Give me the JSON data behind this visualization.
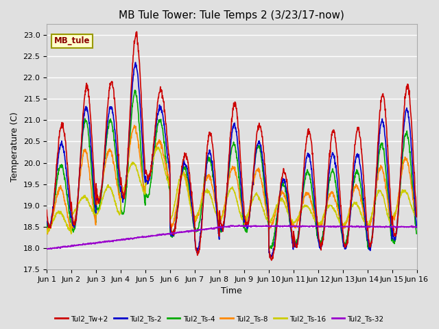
{
  "title": "MB Tule Tower: Tule Temps 2 (3/23/17-now)",
  "xlabel": "Time",
  "ylabel": "Temperature (C)",
  "ylim": [
    17.5,
    23.25
  ],
  "xlim": [
    0,
    15
  ],
  "xtick_labels": [
    "Jun 1",
    "Jun 2",
    "Jun 3",
    "Jun 4",
    "Jun 5",
    "Jun 6",
    "Jun 7",
    "Jun 8",
    "Jun 9",
    "Jun 10",
    "Jun 11",
    "Jun 12",
    "Jun 13",
    "Jun 14",
    "Jun 15",
    "Jun 16"
  ],
  "xtick_positions": [
    0,
    1,
    2,
    3,
    4,
    5,
    6,
    7,
    8,
    9,
    10,
    11,
    12,
    13,
    14,
    15
  ],
  "ytick_positions": [
    17.5,
    18.0,
    18.5,
    19.0,
    19.5,
    20.0,
    20.5,
    21.0,
    21.5,
    22.0,
    22.5,
    23.0
  ],
  "bg_color": "#e0e0e0",
  "plot_bg_color": "#e0e0e0",
  "grid_color": "#ffffff",
  "series_colors": [
    "#cc0000",
    "#0000cc",
    "#00aa00",
    "#ff8800",
    "#cccc00",
    "#9900cc"
  ],
  "series_labels": [
    "Tul2_Tw+2",
    "Tul2_Ts-2",
    "Tul2_Ts-4",
    "Tul2_Ts-8",
    "Tul2_Ts-16",
    "Tul2_Ts-32"
  ],
  "legend_box_color": "#ffffcc",
  "legend_box_edge": "#999900",
  "legend_box_text": "MB_tule",
  "legend_text_color": "#8b0000",
  "title_fontsize": 11,
  "axis_fontsize": 9,
  "tick_fontsize": 8,
  "line_width": 1.2,
  "figwidth": 6.4,
  "figheight": 4.8,
  "dpi": 100
}
